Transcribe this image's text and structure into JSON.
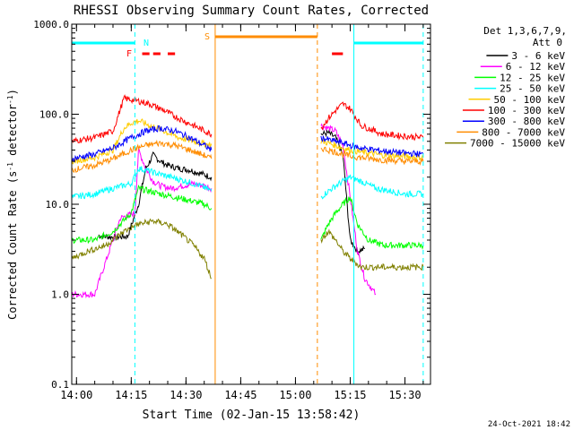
{
  "chart_data": {
    "type": "line",
    "title": "RHESSI Observing Summary Count Rates, Corrected",
    "xlabel": "Start Time (02-Jan-15 13:58:42)",
    "ylabel_main": "Corrected Count Rate (s",
    "ylabel_sup1": "-1",
    "ylabel_mid": " detector",
    "ylabel_sup2": "-1",
    "ylabel_end": ")",
    "footer_date": "24-Oct-2021 18:42",
    "y_scale": "log",
    "ylim": [
      0.1,
      1000
    ],
    "xlim": [
      "13:58:42",
      "15:37:00"
    ],
    "x_ticks": [
      "14:00",
      "14:15",
      "14:30",
      "14:45",
      "15:00",
      "15:15",
      "15:30"
    ],
    "y_ticks": [
      "1000.0",
      "100.0",
      "10.0",
      "1.0",
      "0.1"
    ],
    "legend_header": [
      "Det 1,3,6,7,9,",
      "Att 0"
    ],
    "legend_position": "right",
    "flags": [
      {
        "label": "N",
        "color": "#00ffff",
        "segments": [
          [
            "13:58:42",
            "14:16:00"
          ],
          [
            "15:16:00",
            "15:35:00"
          ]
        ]
      },
      {
        "label": "F",
        "color": "#ff0000",
        "segments": [
          [
            "14:18:00",
            "14:20:00"
          ],
          [
            "14:21:00",
            "14:23:00"
          ],
          [
            "14:25:00",
            "14:27:00"
          ],
          [
            "15:10:00",
            "15:13:00"
          ]
        ]
      },
      {
        "label": "S",
        "color": "#ff8c00",
        "segments": [
          [
            "14:38:00",
            "15:06:00"
          ]
        ]
      }
    ],
    "markers": [
      {
        "time": "13:58:42",
        "color": "#00ffff",
        "style": "solid"
      },
      {
        "time": "14:16:00",
        "color": "#00ffff",
        "style": "dashed"
      },
      {
        "time": "14:38:00",
        "color": "#ff8c00",
        "style": "solid"
      },
      {
        "time": "15:06:00",
        "color": "#ff8c00",
        "style": "dashed"
      },
      {
        "time": "15:16:00",
        "color": "#00ffff",
        "style": "solid"
      },
      {
        "time": "15:35:00",
        "color": "#00ffff",
        "style": "dashed"
      }
    ],
    "series": [
      {
        "name": "3 - 6 keV",
        "color": "#000000",
        "seg1": [
          [
            "14:06",
            4.5
          ],
          [
            "14:10",
            4.3
          ],
          [
            "14:14",
            4.4
          ],
          [
            "14:17",
            10
          ],
          [
            "14:19",
            25
          ],
          [
            "14:21",
            35
          ],
          [
            "14:23",
            30
          ],
          [
            "14:25",
            27
          ],
          [
            "14:28",
            25
          ],
          [
            "14:31",
            24
          ],
          [
            "14:34",
            22
          ],
          [
            "14:37",
            20
          ]
        ],
        "seg2": [
          [
            "15:07",
            60
          ],
          [
            "15:09",
            62
          ],
          [
            "15:11",
            55
          ],
          [
            "15:13",
            35
          ],
          [
            "15:15",
            4
          ],
          [
            "15:17",
            3
          ],
          [
            "15:19",
            3.2
          ]
        ]
      },
      {
        "name": "6 - 12 keV",
        "color": "#ff00ff",
        "seg1": [
          [
            "13:58:42",
            1
          ],
          [
            "14:05",
            1
          ],
          [
            "14:12",
            7
          ],
          [
            "14:16",
            8
          ],
          [
            "14:17",
            40
          ],
          [
            "14:19",
            25
          ],
          [
            "14:21",
            18
          ],
          [
            "14:23",
            16
          ],
          [
            "14:26",
            15
          ],
          [
            "14:29",
            16
          ],
          [
            "14:32",
            17
          ],
          [
            "14:35",
            16
          ],
          [
            "14:37",
            15
          ]
        ],
        "seg2": [
          [
            "15:07",
            75
          ],
          [
            "15:09",
            70
          ],
          [
            "15:11",
            65
          ],
          [
            "15:13",
            45
          ],
          [
            "15:15",
            12
          ],
          [
            "15:17",
            3
          ],
          [
            "15:19",
            1.5
          ],
          [
            "15:22",
            1
          ]
        ]
      },
      {
        "name": "12 - 25 keV",
        "color": "#00ff00",
        "seg1": [
          [
            "13:58:42",
            4
          ],
          [
            "14:05",
            4
          ],
          [
            "14:10",
            5
          ],
          [
            "14:15",
            8
          ],
          [
            "14:17",
            15
          ],
          [
            "14:20",
            14
          ],
          [
            "14:23",
            13
          ],
          [
            "14:27",
            12
          ],
          [
            "14:31",
            11
          ],
          [
            "14:35",
            10
          ],
          [
            "14:37",
            9
          ]
        ],
        "seg2": [
          [
            "15:07",
            4
          ],
          [
            "15:09",
            6
          ],
          [
            "15:11",
            8
          ],
          [
            "15:13",
            10
          ],
          [
            "15:15",
            12
          ],
          [
            "15:17",
            6
          ],
          [
            "15:20",
            4
          ],
          [
            "15:24",
            3.5
          ],
          [
            "15:30",
            3.5
          ],
          [
            "15:35",
            3.5
          ]
        ]
      },
      {
        "name": "25 - 50 keV",
        "color": "#00ffff",
        "seg1": [
          [
            "13:58:42",
            12
          ],
          [
            "14:05",
            13
          ],
          [
            "14:10",
            15
          ],
          [
            "14:15",
            17
          ],
          [
            "14:17",
            25
          ],
          [
            "14:19",
            24
          ],
          [
            "14:22",
            22
          ],
          [
            "14:26",
            20
          ],
          [
            "14:30",
            18
          ],
          [
            "14:34",
            16
          ],
          [
            "14:37",
            14
          ]
        ],
        "seg2": [
          [
            "15:07",
            12
          ],
          [
            "15:09",
            14
          ],
          [
            "15:11",
            16
          ],
          [
            "15:13",
            18
          ],
          [
            "15:15",
            20
          ],
          [
            "15:18",
            18
          ],
          [
            "15:22",
            15
          ],
          [
            "15:26",
            14
          ],
          [
            "15:30",
            13
          ],
          [
            "15:35",
            13
          ]
        ]
      },
      {
        "name": "50 - 100 keV",
        "color": "#ffcc00",
        "seg1": [
          [
            "13:58:42",
            30
          ],
          [
            "14:05",
            33
          ],
          [
            "14:10",
            40
          ],
          [
            "14:13",
            70
          ],
          [
            "14:15",
            80
          ],
          [
            "14:17",
            85
          ],
          [
            "14:20",
            75
          ],
          [
            "14:24",
            65
          ],
          [
            "14:28",
            55
          ],
          [
            "14:32",
            50
          ],
          [
            "14:37",
            45
          ]
        ],
        "seg2": [
          [
            "15:07",
            50
          ],
          [
            "15:09",
            48
          ],
          [
            "15:11",
            45
          ],
          [
            "15:13",
            42
          ],
          [
            "15:15",
            40
          ],
          [
            "15:18",
            38
          ],
          [
            "15:24",
            35
          ],
          [
            "15:30",
            34
          ],
          [
            "15:35",
            33
          ]
        ]
      },
      {
        "name": "100 - 300 keV",
        "color": "#ff0000",
        "seg1": [
          [
            "13:58:42",
            50
          ],
          [
            "14:05",
            55
          ],
          [
            "14:10",
            65
          ],
          [
            "14:13",
            150
          ],
          [
            "14:15",
            145
          ],
          [
            "14:17",
            140
          ],
          [
            "14:20",
            130
          ],
          [
            "14:24",
            110
          ],
          [
            "14:28",
            90
          ],
          [
            "14:32",
            75
          ],
          [
            "14:37",
            60
          ]
        ],
        "seg2": [
          [
            "15:07",
            70
          ],
          [
            "15:09",
            90
          ],
          [
            "15:11",
            110
          ],
          [
            "15:13",
            130
          ],
          [
            "15:15",
            115
          ],
          [
            "15:18",
            75
          ],
          [
            "15:24",
            60
          ],
          [
            "15:30",
            57
          ],
          [
            "15:35",
            55
          ]
        ]
      },
      {
        "name": "300 - 800 keV",
        "color": "#0000ff",
        "seg1": [
          [
            "13:58:42",
            32
          ],
          [
            "14:05",
            36
          ],
          [
            "14:10",
            42
          ],
          [
            "14:15",
            55
          ],
          [
            "14:19",
            65
          ],
          [
            "14:23",
            70
          ],
          [
            "14:27",
            65
          ],
          [
            "14:31",
            55
          ],
          [
            "14:35",
            45
          ],
          [
            "14:37",
            40
          ]
        ],
        "seg2": [
          [
            "15:07",
            55
          ],
          [
            "15:09",
            52
          ],
          [
            "15:11",
            50
          ],
          [
            "15:13",
            48
          ],
          [
            "15:15",
            45
          ],
          [
            "15:18",
            42
          ],
          [
            "15:24",
            39
          ],
          [
            "15:30",
            37
          ],
          [
            "15:35",
            36
          ]
        ]
      },
      {
        "name": "800 - 7000 keV",
        "color": "#ff8c00",
        "seg1": [
          [
            "13:58:42",
            24
          ],
          [
            "14:05",
            27
          ],
          [
            "14:10",
            32
          ],
          [
            "14:15",
            40
          ],
          [
            "14:19",
            45
          ],
          [
            "14:23",
            48
          ],
          [
            "14:27",
            45
          ],
          [
            "14:31",
            40
          ],
          [
            "14:35",
            35
          ],
          [
            "14:37",
            32
          ]
        ],
        "seg2": [
          [
            "15:07",
            42
          ],
          [
            "15:09",
            40
          ],
          [
            "15:11",
            38
          ],
          [
            "15:13",
            36
          ],
          [
            "15:15",
            34
          ],
          [
            "15:18",
            33
          ],
          [
            "15:24",
            31
          ],
          [
            "15:30",
            30
          ],
          [
            "15:35",
            30
          ]
        ]
      },
      {
        "name": "7000 - 15000 keV",
        "color": "#808000",
        "seg1": [
          [
            "13:58:42",
            2.5
          ],
          [
            "14:03",
            3
          ],
          [
            "14:08",
            3.5
          ],
          [
            "14:13",
            5
          ],
          [
            "14:17",
            6
          ],
          [
            "14:21",
            6.5
          ],
          [
            "14:25",
            6
          ],
          [
            "14:29",
            4.5
          ],
          [
            "14:32",
            3.5
          ],
          [
            "14:35",
            2.5
          ],
          [
            "14:37",
            1.5
          ]
        ],
        "seg2": [
          [
            "15:07",
            4
          ],
          [
            "15:09",
            5
          ],
          [
            "15:11",
            4
          ],
          [
            "15:13",
            3
          ],
          [
            "15:15",
            2.5
          ],
          [
            "15:18",
            2
          ],
          [
            "15:24",
            2
          ],
          [
            "15:30",
            2
          ],
          [
            "15:35",
            2
          ]
        ]
      }
    ]
  }
}
